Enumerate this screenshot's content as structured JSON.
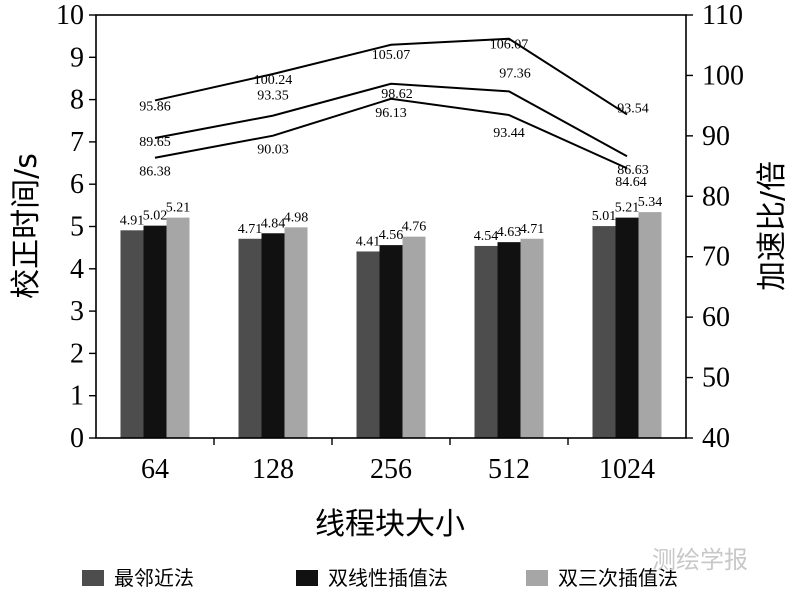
{
  "chart_data": {
    "type": "bar+line",
    "categories": [
      "64",
      "128",
      "256",
      "512",
      "1024"
    ],
    "xlabel": "线程块大小",
    "ylabel_left": "校正时间/s",
    "ylabel_right": "加速比/倍",
    "ylim_left": [
      0,
      10
    ],
    "ylim_right": [
      40,
      110
    ],
    "yticks_left": [
      "0",
      "1",
      "2",
      "3",
      "4",
      "5",
      "6",
      "7",
      "8",
      "9",
      "10"
    ],
    "yticks_right": [
      "40",
      "50",
      "60",
      "70",
      "80",
      "90",
      "100",
      "110"
    ],
    "bar_series": [
      {
        "name": "最邻近法",
        "color": "#4d4d4d",
        "values": [
          4.91,
          4.71,
          4.41,
          4.54,
          5.01
        ],
        "labels": [
          "4.91",
          "4.71",
          "4.41",
          "4.54",
          "5.01"
        ]
      },
      {
        "name": "双线性插值法",
        "color": "#111111",
        "values": [
          5.02,
          4.84,
          4.56,
          4.63,
          5.21
        ],
        "labels": [
          "5.02",
          "4.84",
          "4.56",
          "4.63",
          "5.21"
        ]
      },
      {
        "name": "双三次插值法",
        "color": "#a6a6a6",
        "values": [
          5.21,
          4.98,
          4.76,
          4.71,
          5.34
        ],
        "labels": [
          "5.21",
          "4.98",
          "4.76",
          "4.71",
          "5.34"
        ]
      }
    ],
    "line_series": [
      {
        "name": "最邻近法",
        "values": [
          95.86,
          100.24,
          105.07,
          106.07,
          93.54
        ],
        "labels": [
          "95.86",
          "100.24",
          "105.07",
          "106.07",
          "93.54"
        ]
      },
      {
        "name": "双线性插值法",
        "values": [
          89.65,
          93.35,
          98.62,
          97.36,
          86.63
        ],
        "labels": [
          "89.65",
          "93.35",
          "98.62",
          "97.36",
          "86.63"
        ]
      },
      {
        "name": "双三次插值法",
        "values": [
          86.38,
          90.03,
          96.13,
          93.44,
          84.64
        ],
        "labels": [
          "86.38",
          "90.03",
          "96.13",
          "93.44",
          "84.64"
        ]
      }
    ],
    "legend": [
      "最邻近法",
      "双线性插值法",
      "双三次插值法"
    ],
    "legend_position": "bottom"
  },
  "watermark": "测绘学报"
}
